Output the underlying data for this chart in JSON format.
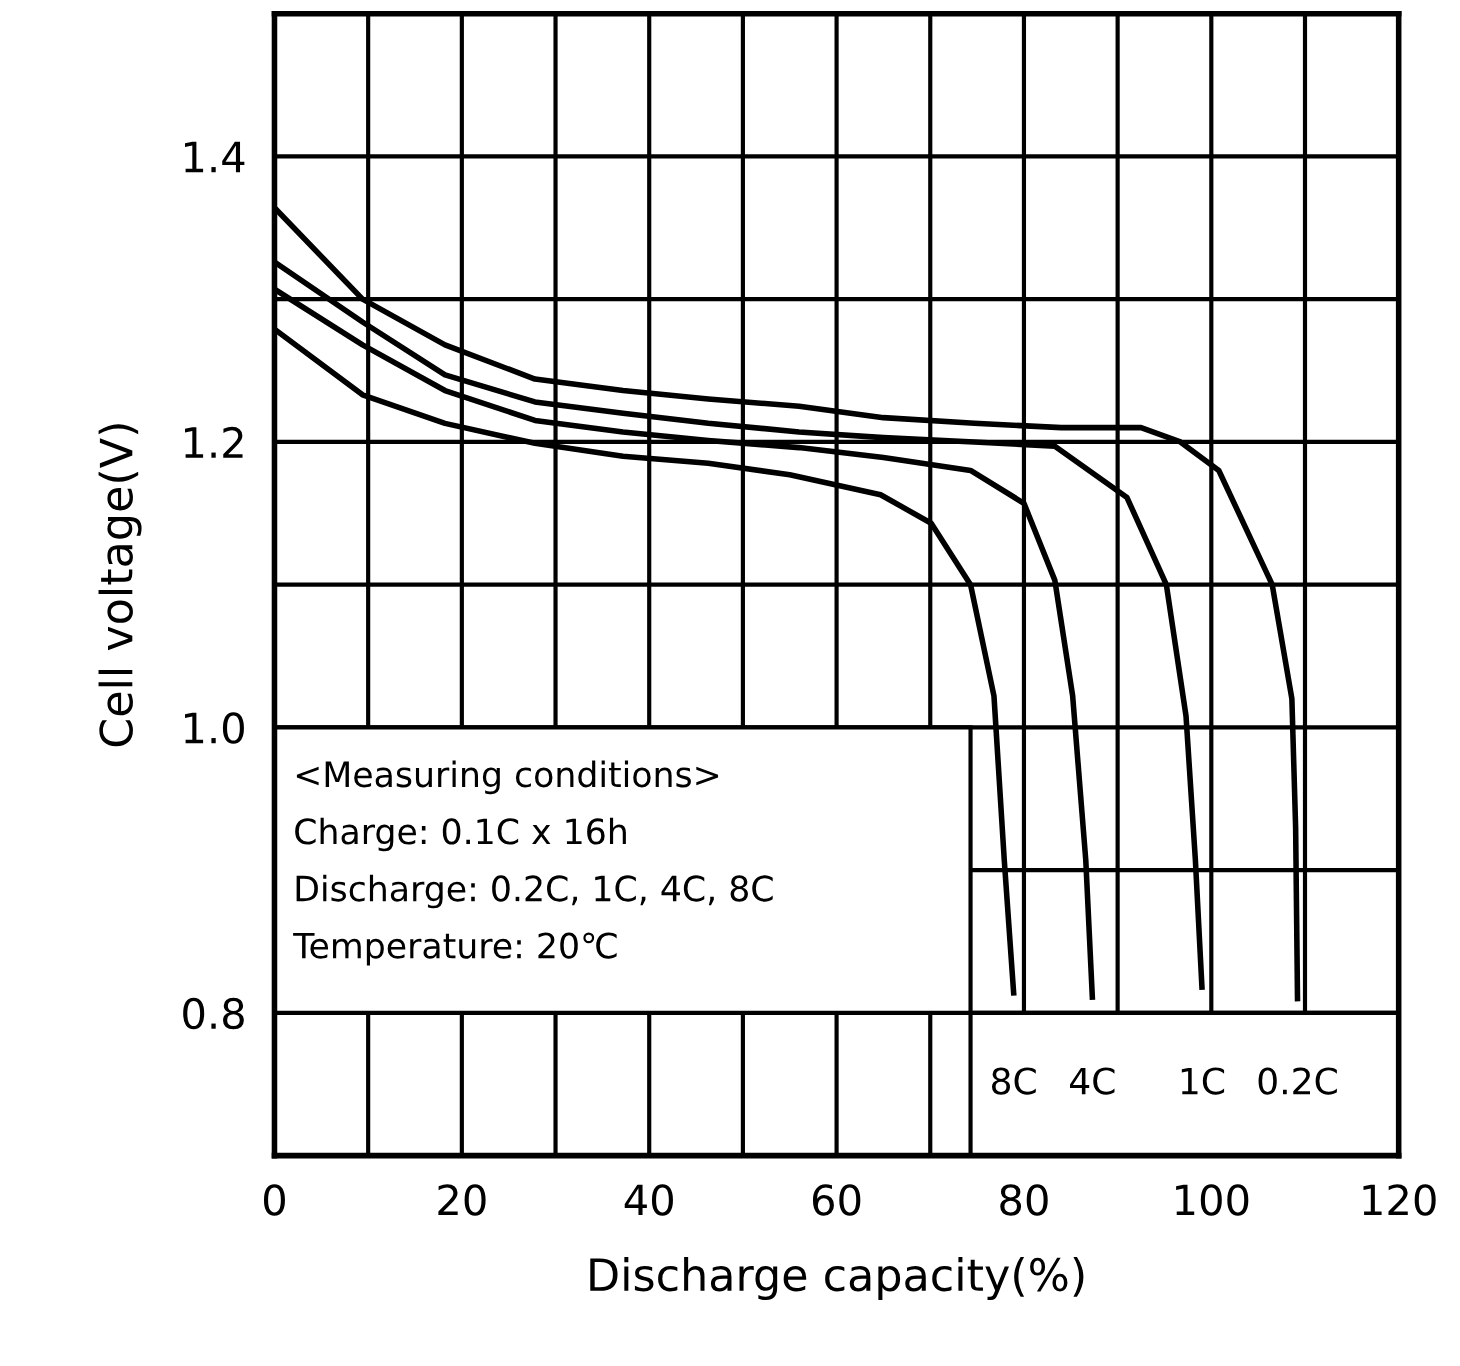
{
  "chart_data": {
    "type": "line",
    "xlabel": "Discharge capacity(%)",
    "ylabel": "Cell voltage(V)",
    "xlim": [
      0,
      120
    ],
    "xticks": [
      0,
      {
        "value": 10,
        "label": null
      },
      20,
      {
        "value": 30,
        "label": null
      },
      40,
      {
        "value": 50,
        "label": null
      },
      60,
      {
        "value": 70,
        "label": null
      },
      80,
      {
        "value": 90,
        "label": null
      },
      100,
      {
        "value": 110,
        "label": null
      },
      120
    ],
    "ylim": [
      0.7,
      1.5
    ],
    "yticks": [
      0.8,
      {
        "value": 0.9,
        "label": null
      },
      "1.0",
      {
        "value": 1.1,
        "label": null
      },
      1.2,
      {
        "value": 1.3,
        "label": null
      },
      1.4
    ],
    "grid": true,
    "legend": false,
    "marker": "none",
    "line_style": "solid",
    "series": [
      {
        "name": "0.2C",
        "color": "#000000",
        "x": [
          0,
          9.4,
          18.2,
          27.8,
          37.2,
          46.3,
          56,
          65,
          74.7,
          84,
          92.5,
          96.7,
          100.8,
          106.5,
          108.6,
          109,
          109.2
        ],
        "values": [
          1.364,
          1.3,
          1.268,
          1.244,
          1.236,
          1.23,
          1.225,
          1.217,
          1.213,
          1.21,
          1.21,
          1.2,
          1.18,
          1.1,
          1.02,
          0.93,
          0.81
        ]
      },
      {
        "name": "1C",
        "color": "#000000",
        "x": [
          0,
          9.4,
          18.2,
          27.8,
          37.2,
          46.3,
          56,
          65,
          74.7,
          83.3,
          91,
          95.2,
          97.3,
          98.3,
          99
        ],
        "values": [
          1.326,
          1.284,
          1.247,
          1.228,
          1.22,
          1.213,
          1.207,
          1.203,
          1.2,
          1.197,
          1.161,
          1.1,
          1.008,
          0.907,
          0.818
        ]
      },
      {
        "name": "4C",
        "color": "#000000",
        "x": [
          0,
          9.4,
          18.2,
          27.8,
          37.2,
          46.3,
          56,
          65,
          74.3,
          80,
          83.3,
          85.2,
          86.6,
          87.3
        ],
        "values": [
          1.307,
          1.268,
          1.236,
          1.215,
          1.207,
          1.201,
          1.196,
          1.189,
          1.18,
          1.157,
          1.103,
          1.022,
          0.907,
          0.811
        ]
      },
      {
        "name": "8C",
        "color": "#000000",
        "x": [
          0,
          9.4,
          18.2,
          27.8,
          37.2,
          46.3,
          55,
          64.7,
          70.1,
          74.3,
          76.8,
          77.9,
          78.9
        ],
        "values": [
          1.279,
          1.233,
          1.213,
          1.199,
          1.19,
          1.185,
          1.177,
          1.163,
          1.143,
          1.1,
          1.022,
          0.907,
          0.814
        ]
      }
    ],
    "annotations": [
      "<Measuring conditions>",
      "Charge: 0.1C x 16h",
      "Discharge: 0.2C, 1C, 4C, 8C",
      "Temperature: 20℃"
    ]
  }
}
